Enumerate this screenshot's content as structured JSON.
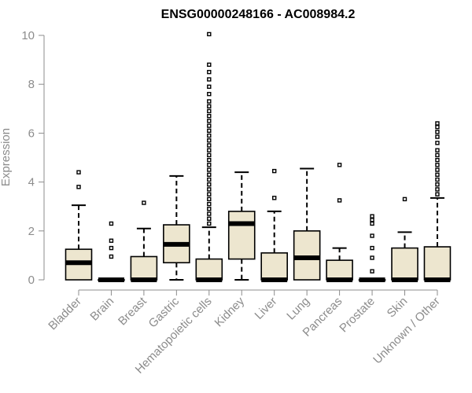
{
  "chart_data": {
    "type": "box",
    "title": "ENSG00000248166 - AC008984.2",
    "ylabel": "Expression",
    "xlabel": "",
    "ylim": [
      0,
      10
    ],
    "yticks": [
      0,
      2,
      4,
      6,
      8,
      10
    ],
    "box_fill": "#EDE6CF",
    "categories": [
      "Bladder",
      "Brain",
      "Breast",
      "Gastric",
      "Hematopoietic cells",
      "Kidney",
      "Liver",
      "Lung",
      "Pancreas",
      "Prostate",
      "Skin",
      "Unknown / Other"
    ],
    "boxes": [
      {
        "category": "Bladder",
        "whisker_low": 0,
        "q1": 0,
        "median": 0.7,
        "q3": 1.25,
        "whisker_high": 3.05,
        "outliers": [
          3.8,
          4.4
        ]
      },
      {
        "category": "Brain",
        "whisker_low": 0,
        "q1": 0,
        "median": 0,
        "q3": 0,
        "whisker_high": 0,
        "outliers": [
          0.95,
          1.3,
          1.6,
          2.3
        ]
      },
      {
        "category": "Breast",
        "whisker_low": 0,
        "q1": 0,
        "median": 0,
        "q3": 0.95,
        "whisker_high": 2.1,
        "outliers": [
          3.15
        ]
      },
      {
        "category": "Gastric",
        "whisker_low": 0,
        "q1": 0.7,
        "median": 1.45,
        "q3": 2.25,
        "whisker_high": 4.25,
        "outliers": []
      },
      {
        "category": "Hematopoietic cells",
        "whisker_low": 0,
        "q1": 0,
        "median": 0,
        "q3": 0.85,
        "whisker_high": 2.15,
        "outliers": [
          2.3,
          2.5,
          2.7,
          2.9,
          3.1,
          3.3,
          3.5,
          3.7,
          3.9,
          4.1,
          4.3,
          4.5,
          4.7,
          4.9,
          5.1,
          5.3,
          5.5,
          5.7,
          5.9,
          6.1,
          6.3,
          6.5,
          6.7,
          6.9,
          7.1,
          7.3,
          7.6,
          7.9,
          8.2,
          8.5,
          8.8,
          10.05
        ]
      },
      {
        "category": "Kidney",
        "whisker_low": 0,
        "q1": 0.85,
        "median": 2.3,
        "q3": 2.8,
        "whisker_high": 4.4,
        "outliers": []
      },
      {
        "category": "Liver",
        "whisker_low": 0,
        "q1": 0,
        "median": 0,
        "q3": 1.1,
        "whisker_high": 2.8,
        "outliers": [
          3.35,
          4.45
        ]
      },
      {
        "category": "Lung",
        "whisker_low": 0,
        "q1": 0,
        "median": 0.9,
        "q3": 2.0,
        "whisker_high": 4.55,
        "outliers": []
      },
      {
        "category": "Pancreas",
        "whisker_low": 0,
        "q1": 0,
        "median": 0,
        "q3": 0.8,
        "whisker_high": 1.3,
        "outliers": [
          3.25,
          4.7
        ]
      },
      {
        "category": "Prostate",
        "whisker_low": 0,
        "q1": 0,
        "median": 0,
        "q3": 0,
        "whisker_high": 0,
        "outliers": [
          0.35,
          0.9,
          1.3,
          1.8,
          2.3,
          2.45,
          2.6
        ]
      },
      {
        "category": "Skin",
        "whisker_low": 0,
        "q1": 0,
        "median": 0,
        "q3": 1.3,
        "whisker_high": 1.95,
        "outliers": [
          3.3
        ]
      },
      {
        "category": "Unknown / Other",
        "whisker_low": 0,
        "q1": 0,
        "median": 0,
        "q3": 1.35,
        "whisker_high": 3.35,
        "outliers": [
          3.5,
          3.7,
          3.9,
          4.1,
          4.3,
          4.5,
          4.7,
          4.9,
          5.1,
          5.3,
          5.6,
          5.85,
          6.05,
          6.25,
          6.4
        ]
      }
    ]
  }
}
